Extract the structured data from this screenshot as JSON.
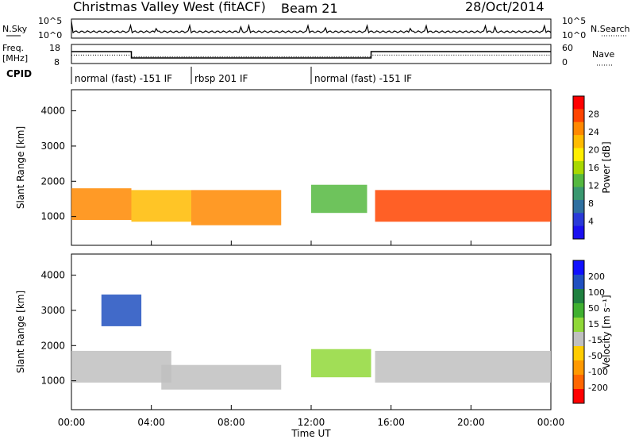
{
  "header": {
    "station": "Christmas Valley West (fitACF)",
    "beam": "Beam 21",
    "date": "28/Oct/2014"
  },
  "top_panels": {
    "nsky_label": "N.Sky",
    "nsearch_label": "N.Search",
    "nsky_ticks": [
      "10^5",
      "10^0"
    ],
    "nsearch_ticks": [
      "10^5",
      "10^0"
    ],
    "freq_label_line1": "Freq.",
    "freq_label_line2": "[MHz]",
    "freq_ticks": [
      "18",
      "8"
    ],
    "nave_label": "Nave",
    "nave_ticks": [
      "60",
      "0"
    ],
    "cpid_label": "CPID",
    "cpid_segments": [
      {
        "label": "normal (fast) -151 IF",
        "start_hour": 0,
        "end_hour": 6
      },
      {
        "label": "rbsp 201 IF",
        "start_hour": 6,
        "end_hour": 12
      },
      {
        "label": "normal (fast) -151 IF",
        "start_hour": 12,
        "end_hour": 24
      }
    ],
    "freq_series": {
      "name": "Freq.",
      "hours": [
        0,
        3,
        3,
        15,
        15,
        24
      ],
      "values": [
        14.5,
        14.5,
        10.5,
        10.5,
        14.5,
        14.5
      ]
    },
    "nave_series": {
      "name": "Nave",
      "hours": [
        0,
        3,
        3,
        15,
        15,
        24
      ],
      "values": [
        26,
        26,
        19,
        19,
        26,
        26
      ]
    }
  },
  "colorbars": {
    "power": {
      "label": "Power [dB]",
      "ticks": [
        "28",
        "24",
        "20",
        "16",
        "12",
        "8",
        "4"
      ],
      "colors": [
        "#ff0000",
        "#ff4400",
        "#ff8800",
        "#ffbb00",
        "#ffee00",
        "#a8d800",
        "#55b840",
        "#3a9870",
        "#2f70a0",
        "#2a3ad8",
        "#1a10f0"
      ]
    },
    "velocity": {
      "label": "Velocity [m s⁻¹]",
      "ticks": [
        "200",
        "100",
        "50",
        "15",
        "-15",
        "-50",
        "-100",
        "-200"
      ],
      "colors": [
        "#1010ff",
        "#2050c0",
        "#1f8040",
        "#40b030",
        "#90d838",
        "#c0c0c0",
        "#ffcc00",
        "#ff9900",
        "#ff6600",
        "#ff0000"
      ]
    }
  },
  "chart_data": {
    "type": "heatmap",
    "panels": [
      "power",
      "velocity"
    ],
    "xlabel": "Time UT",
    "ylabel": "Slant Range [km]",
    "x_tick_labels": [
      "00:00",
      "04:00",
      "08:00",
      "12:00",
      "16:00",
      "20:00",
      "00:00"
    ],
    "y_tick_labels": [
      "4000",
      "3000",
      "2000",
      "1000"
    ],
    "xlim_hours": [
      0,
      24
    ],
    "ylim_km": [
      180,
      4600
    ],
    "power_bands": [
      {
        "hour_start": 0.0,
        "hour_end": 3.0,
        "range_center_km": 1350,
        "range_width_km": 900,
        "power_db": 26
      },
      {
        "hour_start": 3.0,
        "hour_end": 6.0,
        "range_center_km": 1300,
        "range_width_km": 900,
        "power_db": 22
      },
      {
        "hour_start": 6.0,
        "hour_end": 10.5,
        "range_center_km": 1250,
        "range_width_km": 1000,
        "power_db": 24
      },
      {
        "hour_start": 12.0,
        "hour_end": 14.8,
        "range_center_km": 1500,
        "range_width_km": 800,
        "power_db": 14
      },
      {
        "hour_start": 15.2,
        "hour_end": 24.0,
        "range_center_km": 1300,
        "range_width_km": 900,
        "power_db": 28
      }
    ],
    "velocity_bands": [
      {
        "hour_start": 0.0,
        "hour_end": 5.0,
        "range_center_km": 1400,
        "range_width_km": 900,
        "velocity_ms": -5
      },
      {
        "hour_start": 4.5,
        "hour_end": 10.5,
        "range_center_km": 1100,
        "range_width_km": 700,
        "velocity_ms": -45
      },
      {
        "hour_start": 12.0,
        "hour_end": 15.0,
        "range_center_km": 1500,
        "range_width_km": 800,
        "velocity_ms": 30
      },
      {
        "hour_start": 15.2,
        "hour_end": 24.0,
        "range_center_km": 1400,
        "range_width_km": 900,
        "velocity_ms": 0
      },
      {
        "hour_start": 1.5,
        "hour_end": 3.5,
        "range_center_km": 3000,
        "range_width_km": 900,
        "velocity_ms": 150
      }
    ]
  }
}
